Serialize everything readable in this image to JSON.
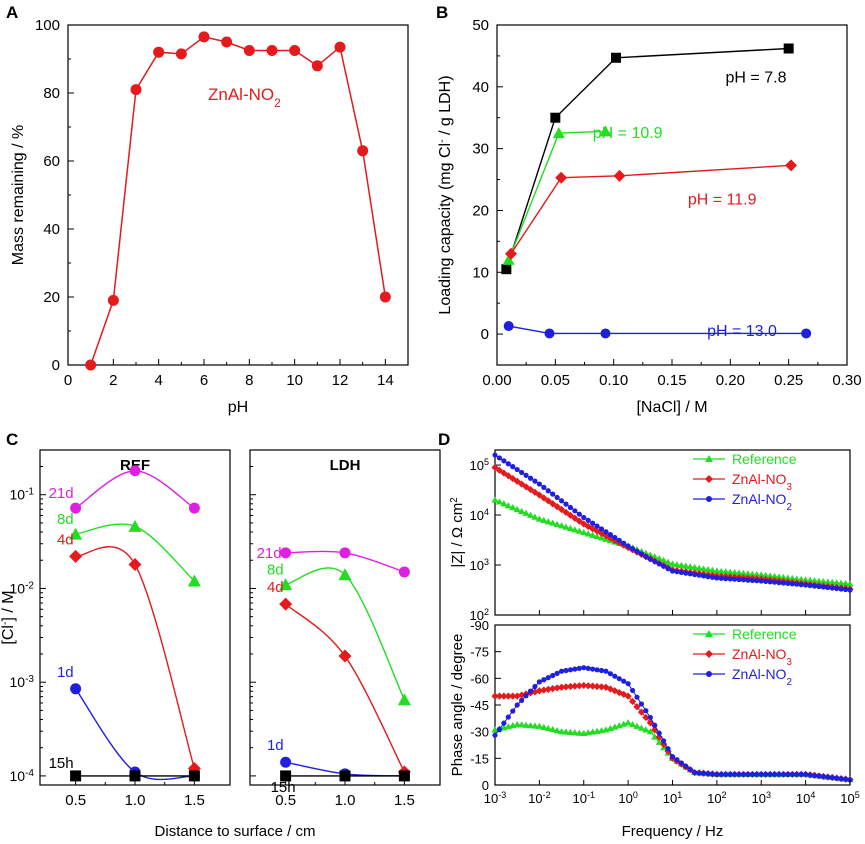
{
  "panels": {
    "a": "A",
    "b": "B",
    "c": "C",
    "d": "D"
  },
  "chart_data": [
    {
      "id": "A",
      "type": "line",
      "xlabel": "pH",
      "ylabel": "Mass remaining / %",
      "xlim": [
        0,
        15
      ],
      "ylim": [
        0,
        100
      ],
      "xticks": [
        0,
        2,
        4,
        6,
        8,
        10,
        12,
        14
      ],
      "yticks": [
        0,
        20,
        40,
        60,
        80,
        100
      ],
      "annotation": {
        "main": "ZnAl-NO",
        "sub": "2"
      },
      "series": [
        {
          "name": "ZnAl-NO2",
          "color": "#e41a1c",
          "x": [
            1,
            2,
            3,
            4,
            5,
            6,
            7,
            8,
            9,
            10,
            11,
            12,
            13,
            14
          ],
          "y": [
            0,
            19,
            81,
            92,
            91.5,
            96.5,
            95,
            92.5,
            92.5,
            92.5,
            88,
            93.5,
            63,
            20
          ]
        }
      ]
    },
    {
      "id": "B",
      "type": "line",
      "xlabel": "[NaCl] / M",
      "ylabel": "Loading capacity (mg Cl",
      "ylabel_sup": "-",
      "ylabel_tail": " / g LDH)",
      "xlim": [
        0,
        0.3
      ],
      "ylim": [
        -5,
        50
      ],
      "xticks": [
        0.0,
        0.05,
        0.1,
        0.15,
        0.2,
        0.25,
        0.3
      ],
      "xtick_labels": [
        "0.00",
        "0.05",
        "0.10",
        "0.15",
        "0.20",
        "0.25",
        "0.30"
      ],
      "yticks": [
        0,
        10,
        20,
        30,
        40,
        50
      ],
      "series": [
        {
          "name": "pH = 7.8",
          "color": "#000000",
          "marker": "square",
          "x": [
            0.008,
            0.05,
            0.102,
            0.25
          ],
          "y": [
            10.5,
            35,
            44.7,
            46.2
          ]
        },
        {
          "name": "pH = 10.9",
          "color": "#22dd22",
          "marker": "triangle",
          "x": [
            0.01,
            0.053,
            0.093
          ],
          "y": [
            12,
            32.5,
            32.8
          ]
        },
        {
          "name": "pH = 11.9",
          "color": "#e41a1c",
          "marker": "diamond",
          "x": [
            0.012,
            0.055,
            0.105,
            0.252
          ],
          "y": [
            13,
            25.3,
            25.6,
            27.3
          ]
        },
        {
          "name": "pH = 13.0",
          "color": "#1f1fe0",
          "marker": "circle",
          "x": [
            0.01,
            0.045,
            0.093,
            0.265
          ],
          "y": [
            1.3,
            0.1,
            0.1,
            0.1
          ]
        }
      ]
    },
    {
      "id": "C",
      "type": "scatter",
      "xlabel": "Distance to surface / cm",
      "ylabel": "[Cl",
      "ylabel_sup": "-",
      "ylabel_tail": "] / M",
      "yscale": "log",
      "ylim": [
        8e-05,
        0.3
      ],
      "xlim": [
        0.2,
        1.8
      ],
      "xticks": [
        0.5,
        1.0,
        1.5
      ],
      "xtick_labels": [
        "0.5",
        "1.0",
        "1.5"
      ],
      "yticks": [
        0.0001,
        0.001,
        0.01,
        0.1
      ],
      "subplots": [
        {
          "title": "REF",
          "series": [
            {
              "name": "21d",
              "color": "#e020e0",
              "marker": "circle",
              "x": [
                0.5,
                1.0,
                1.5
              ],
              "y": [
                0.072,
                0.18,
                0.072
              ]
            },
            {
              "name": "8d",
              "color": "#22dd22",
              "marker": "triangle",
              "x": [
                0.5,
                1.0,
                1.5
              ],
              "y": [
                0.038,
                0.046,
                0.012
              ]
            },
            {
              "name": "4d",
              "color": "#e41a1c",
              "marker": "diamond",
              "x": [
                0.5,
                1.0,
                1.5
              ],
              "y": [
                0.022,
                0.018,
                0.00012
              ]
            },
            {
              "name": "1d",
              "color": "#1f1fe0",
              "marker": "circle",
              "x": [
                0.5,
                1.0,
                1.5
              ],
              "y": [
                0.00085,
                0.00011,
                0.0001
              ]
            },
            {
              "name": "15h",
              "color": "#000000",
              "marker": "square",
              "x": [
                0.5,
                1.0,
                1.5
              ],
              "y": [
                0.0001,
                0.0001,
                0.0001
              ]
            }
          ]
        },
        {
          "title": "LDH",
          "series": [
            {
              "name": "21d",
              "color": "#e020e0",
              "marker": "circle",
              "x": [
                0.5,
                1.0,
                1.5
              ],
              "y": [
                0.024,
                0.024,
                0.015
              ]
            },
            {
              "name": "8d",
              "color": "#22dd22",
              "marker": "triangle",
              "x": [
                0.5,
                1.0,
                1.5
              ],
              "y": [
                0.011,
                0.014,
                0.00065
              ]
            },
            {
              "name": "4d",
              "color": "#e41a1c",
              "marker": "diamond",
              "x": [
                0.5,
                1.0,
                1.5
              ],
              "y": [
                0.0068,
                0.0019,
                0.00011
              ]
            },
            {
              "name": "1d",
              "color": "#1f1fe0",
              "marker": "circle",
              "x": [
                0.5,
                1.0,
                1.5
              ],
              "y": [
                0.00014,
                0.000105,
                0.0001
              ]
            },
            {
              "name": "15h",
              "color": "#000000",
              "marker": "square",
              "x": [
                0.5,
                1.0,
                1.5
              ],
              "y": [
                0.0001,
                0.0001,
                0.0001
              ]
            }
          ]
        }
      ]
    },
    {
      "id": "D",
      "type": "line",
      "xlabel": "Frequency / Hz",
      "xscale": "log",
      "xlim": [
        0.001,
        100000
      ],
      "legend": [
        "Reference",
        "ZnAl-NO3",
        "ZnAl-NO2"
      ],
      "top": {
        "ylabel": "|Z| / Ω cm",
        "ylabel_sup": "2",
        "yscale": "log",
        "ylim": [
          100,
          200000
        ],
        "series": [
          {
            "name": "Reference",
            "color": "#22dd22",
            "marker": "triangle",
            "logf": [
              -3,
              -2,
              -1,
              0,
              0.5,
              1,
              2,
              3,
              4,
              5
            ],
            "logz": [
              4.3,
              3.92,
              3.65,
              3.38,
              3.2,
              3.02,
              2.88,
              2.8,
              2.7,
              2.62
            ]
          },
          {
            "name": "ZnAl-NO3",
            "color": "#e41a1c",
            "marker": "diamond",
            "logf": [
              -3,
              -2,
              -1,
              0,
              0.5,
              1,
              2,
              3,
              4,
              5
            ],
            "logz": [
              4.95,
              4.4,
              3.82,
              3.35,
              3.12,
              2.9,
              2.78,
              2.72,
              2.62,
              2.52
            ]
          },
          {
            "name": "ZnAl-NO2",
            "color": "#1f1fe0",
            "marker": "circle",
            "logf": [
              -3,
              -2,
              -1,
              0,
              0.5,
              1,
              2,
              3,
              4,
              5
            ],
            "logz": [
              5.2,
              4.62,
              3.95,
              3.38,
              3.12,
              2.88,
              2.74,
              2.68,
              2.6,
              2.5
            ]
          }
        ]
      },
      "bottom": {
        "ylabel": "Phase angle / degree",
        "ylim": [
          0,
          -90
        ],
        "yticks": [
          0,
          -15,
          -30,
          -45,
          -60,
          -75,
          -90
        ],
        "series": [
          {
            "name": "Reference",
            "color": "#22dd22",
            "marker": "triangle",
            "logf": [
              -3,
              -2.5,
              -2,
              -1.5,
              -1,
              -0.5,
              0,
              0.5,
              1,
              1.5,
              2,
              3,
              4,
              5
            ],
            "phase": [
              -31,
              -34,
              -33,
              -30,
              -29,
              -31,
              -35,
              -30,
              -15,
              -7,
              -6,
              -6,
              -6,
              -3
            ]
          },
          {
            "name": "ZnAl-NO3",
            "color": "#e41a1c",
            "marker": "diamond",
            "logf": [
              -3,
              -2.5,
              -2,
              -1.5,
              -1,
              -0.5,
              0,
              0.5,
              1,
              1.5,
              2,
              3,
              4,
              5
            ],
            "phase": [
              -50,
              -50,
              -53,
              -55,
              -56,
              -55,
              -50,
              -35,
              -15,
              -7,
              -6,
              -6,
              -6,
              -3
            ]
          },
          {
            "name": "ZnAl-NO2",
            "color": "#1f1fe0",
            "marker": "circle",
            "logf": [
              -3,
              -2.5,
              -2,
              -1.5,
              -1,
              -0.5,
              0,
              0.5,
              1,
              1.5,
              2,
              3,
              4,
              5
            ],
            "phase": [
              -28,
              -45,
              -58,
              -64,
              -66,
              -64,
              -57,
              -38,
              -16,
              -7,
              -6,
              -6,
              -6,
              -3
            ]
          }
        ]
      }
    }
  ]
}
